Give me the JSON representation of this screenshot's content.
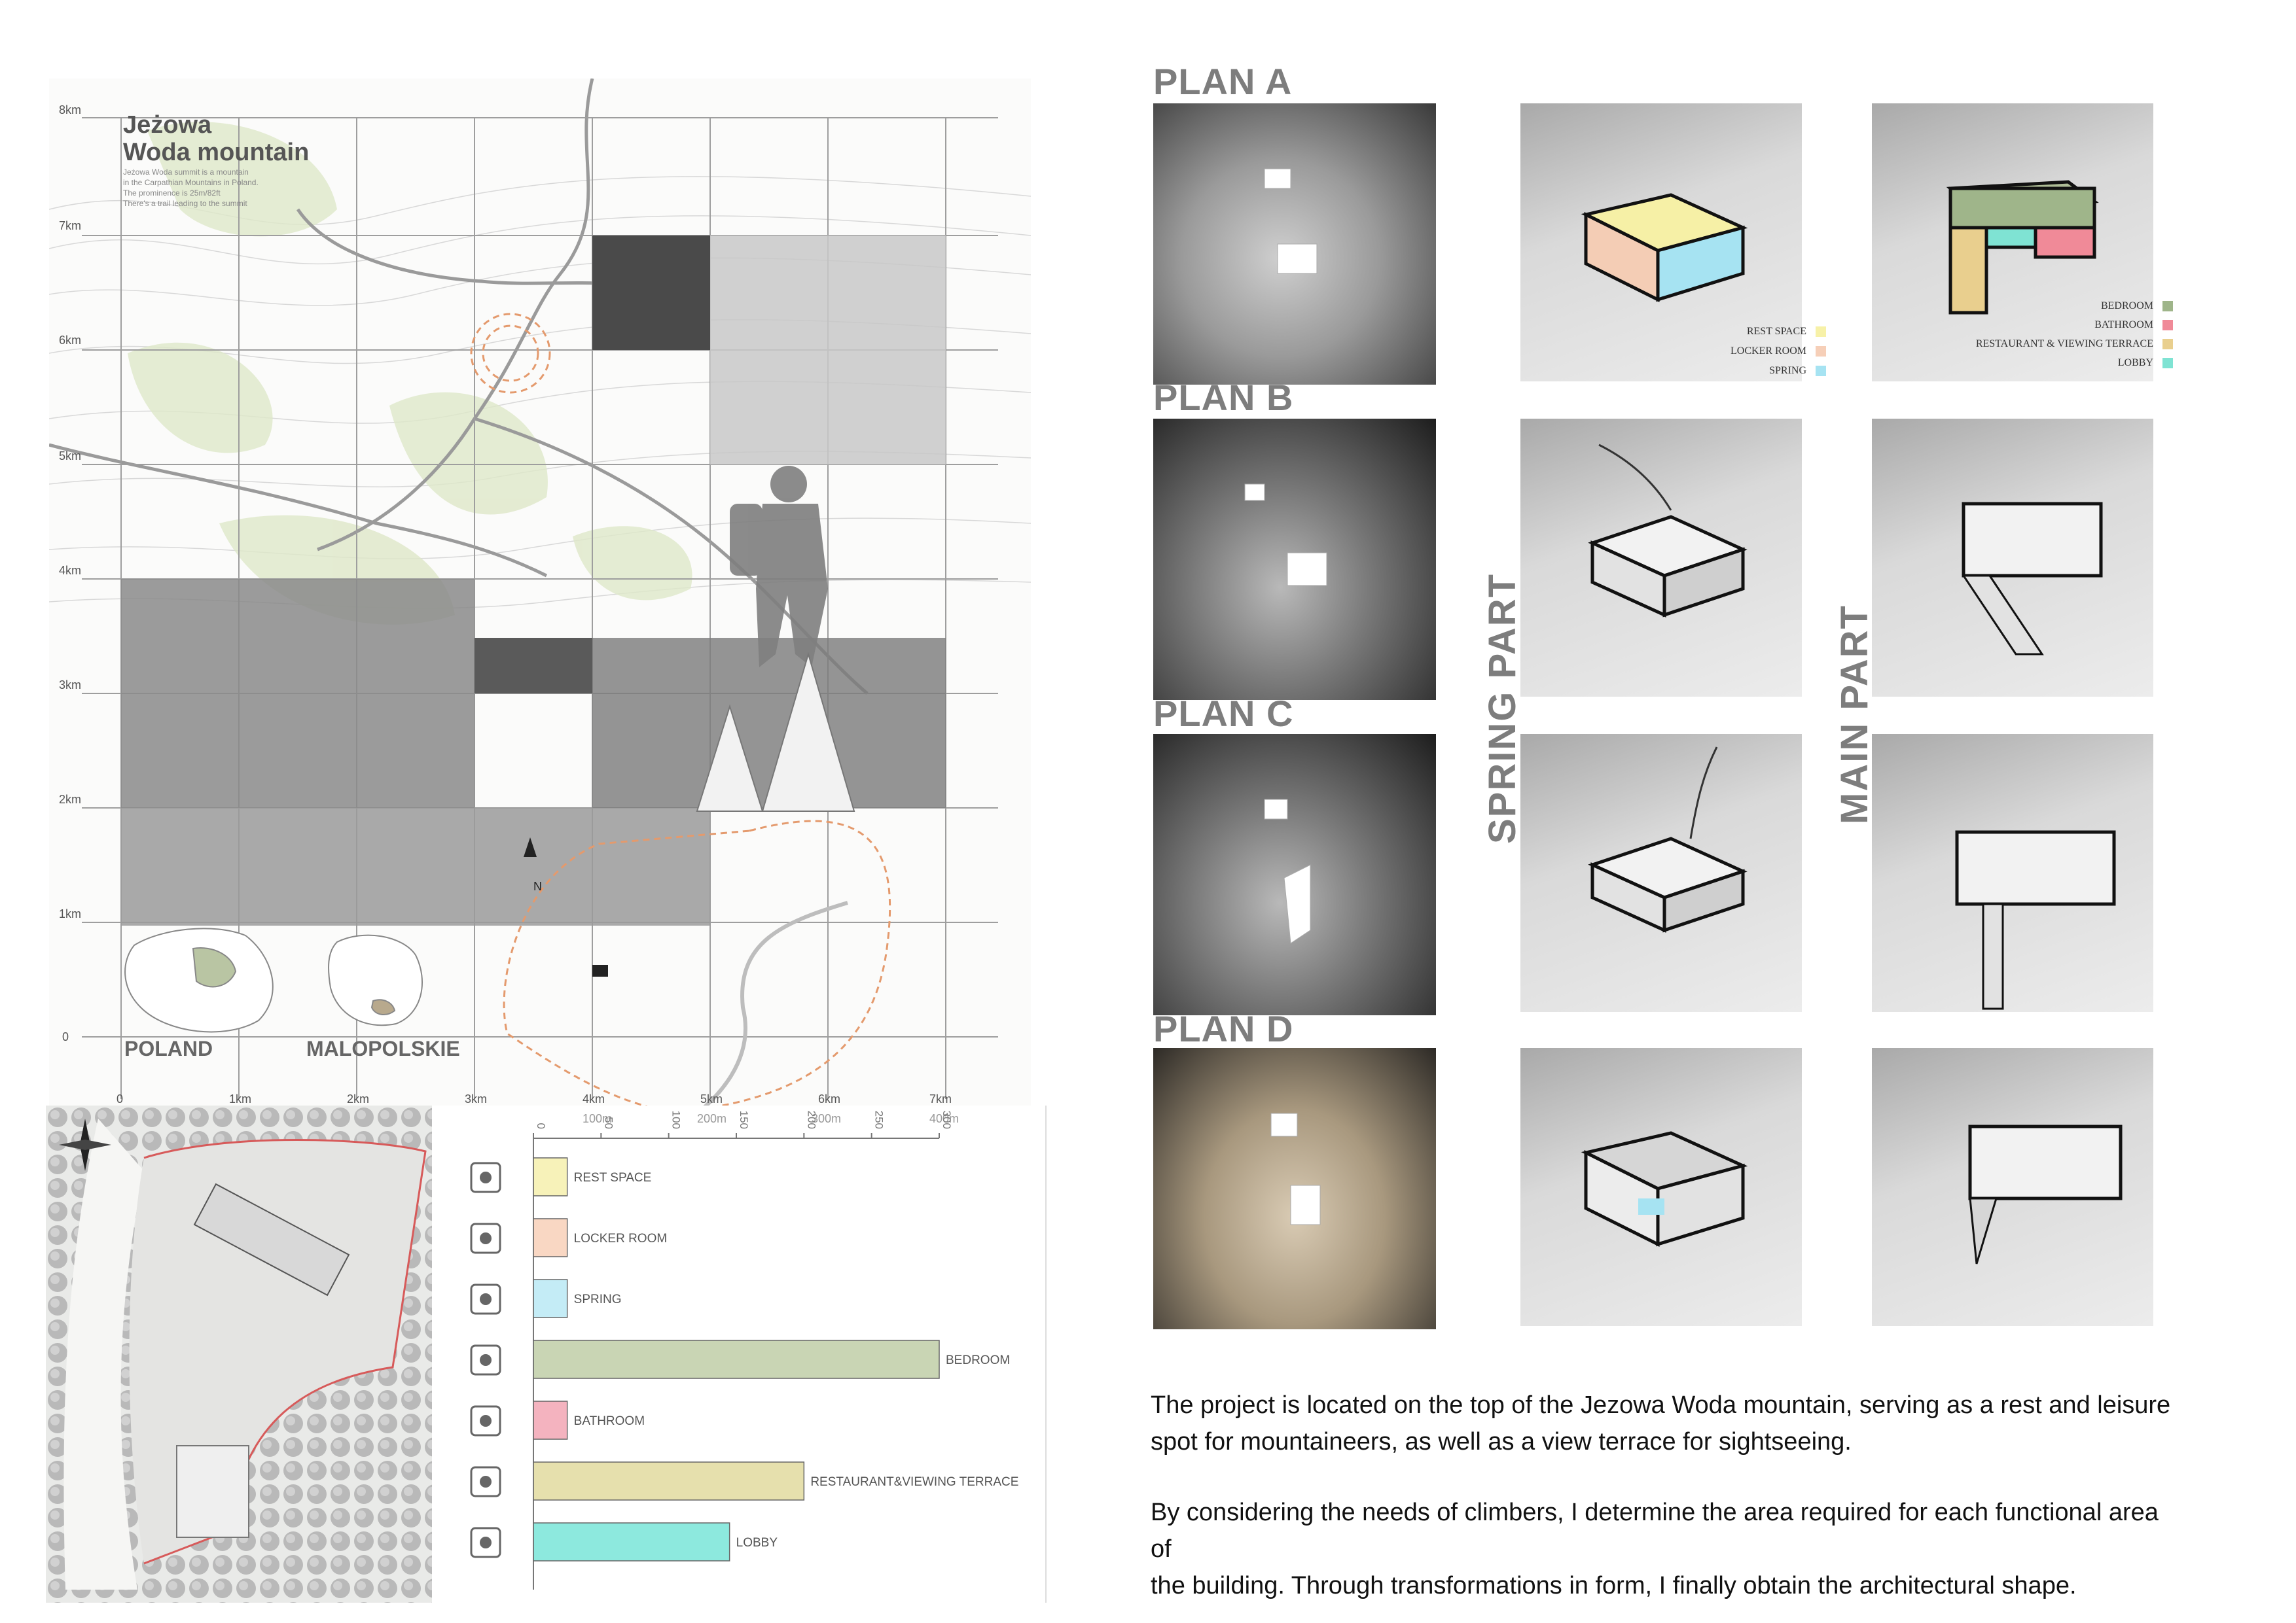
{
  "map": {
    "title_line1": "Jeżowa",
    "title_line2": "Woda mountain",
    "description": [
      "Jeżowa Woda summit is a mountain",
      "in the Carpathian Mountains in Poland.",
      "The prominence is 25m/82ft",
      "There's a trail leading to the summit"
    ],
    "y_ticks": [
      "8km",
      "7km",
      "6km",
      "5km",
      "4km",
      "3km",
      "2km",
      "1km",
      "0"
    ],
    "x_ticks": [
      "0",
      "1km",
      "2km",
      "3km",
      "4km",
      "5km",
      "6km",
      "7km"
    ],
    "scale_ticks": [
      "100m",
      "200m",
      "300m",
      "400m"
    ],
    "country_label": "POLAND",
    "region_label": "MALOPOLSKIE",
    "north_label": "N"
  },
  "chart_data": {
    "type": "bar",
    "orientation": "horizontal",
    "categories": [
      "REST SPACE",
      "LOCKER ROOM",
      "SPRING",
      "BEDROOM",
      "BATHROOM",
      "RESTAURANT&VIEWING TERRACE",
      "LOBBY"
    ],
    "values": [
      25,
      25,
      25,
      300,
      25,
      200,
      145
    ],
    "colors": [
      "#f7f2b9",
      "#f9d7c3",
      "#c4ecf6",
      "#c9d5b4",
      "#f4b3bf",
      "#e6e0ad",
      "#8de9de"
    ],
    "x_ticks": [
      "0",
      "50",
      "100",
      "150",
      "200",
      "250",
      "300"
    ],
    "xlim": [
      0,
      300
    ],
    "icons": [
      "tree-bench-icon",
      "locker-icon",
      "hot-spring-icon",
      "bed-icon",
      "shower-icon",
      "dining-icon",
      "reception-icon"
    ]
  },
  "plans": {
    "titles": [
      "PLAN A",
      "PLAN B",
      "PLAN C",
      "PLAN D"
    ],
    "spring_label": "SPRING PART",
    "main_label": "MAIN PART",
    "spring_legend": [
      {
        "label": "REST SPACE",
        "color": "#f7f1a8"
      },
      {
        "label": "LOCKER ROOM",
        "color": "#f6cfb8"
      },
      {
        "label": "SPRING",
        "color": "#a6e3f2"
      }
    ],
    "main_legend": [
      {
        "label": "BEDROOM",
        "color": "#9fb58a"
      },
      {
        "label": "BATHROOM",
        "color": "#f08a98"
      },
      {
        "label": "RESTAURANT & VIEWING TERRACE",
        "color": "#e9cf8e"
      },
      {
        "label": "LOBBY",
        "color": "#7fe3d3"
      }
    ]
  },
  "text": {
    "para1_line1": "The project is located on the top of the Jezowa Woda mountain, serving as a rest and leisure",
    "para1_line2": "spot for mountaineers, as well as a view terrace for sightseeing.",
    "para2_line1": "By considering the needs of climbers, I determine the area required for each functional area of",
    "para2_line2": "the building. Through transformations in form, I finally obtain the architectural shape."
  }
}
